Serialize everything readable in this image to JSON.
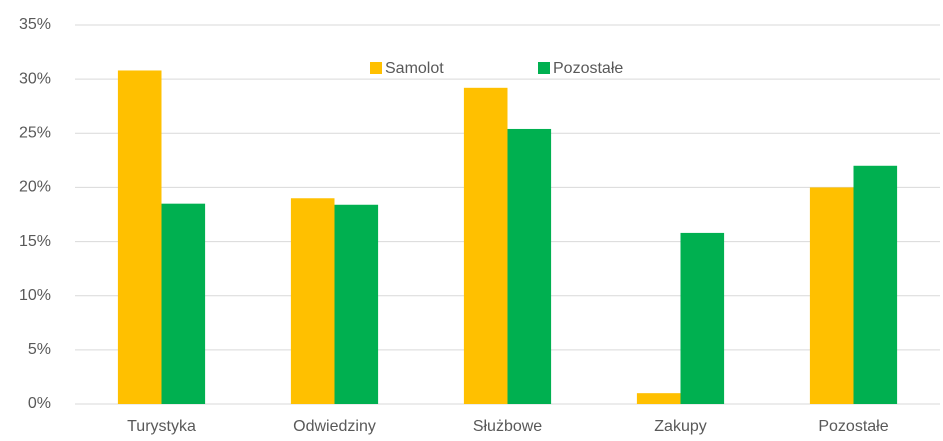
{
  "chart_data": {
    "type": "bar",
    "categories": [
      "Turystyka",
      "Odwiedziny",
      "Służbowe",
      "Zakupy",
      "Pozostałe"
    ],
    "series": [
      {
        "name": "Samolot",
        "color": "#ffc000",
        "values": [
          30.8,
          19.0,
          29.2,
          1.0,
          20.0
        ]
      },
      {
        "name": "Pozostałe",
        "color": "#00b050",
        "values": [
          18.5,
          18.4,
          25.4,
          15.8,
          22.0
        ]
      }
    ],
    "ylim": [
      0,
      35
    ],
    "yticks": [
      {
        "value": 0,
        "label": "0%"
      },
      {
        "value": 5,
        "label": "5%"
      },
      {
        "value": 10,
        "label": "10%"
      },
      {
        "value": 15,
        "label": "15%"
      },
      {
        "value": 20,
        "label": "20%"
      },
      {
        "value": 25,
        "label": "25%"
      },
      {
        "value": 30,
        "label": "30%"
      },
      {
        "value": 35,
        "label": "35%"
      }
    ],
    "grid": true,
    "legend": "top"
  }
}
